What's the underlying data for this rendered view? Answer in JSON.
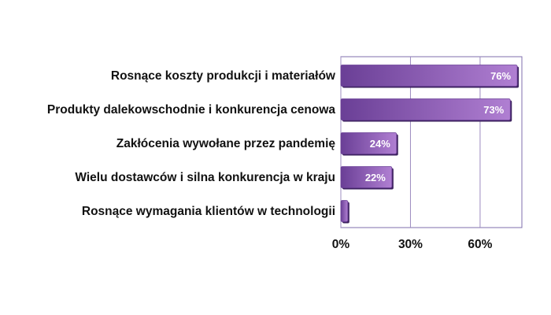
{
  "chart_data": {
    "type": "bar",
    "orientation": "horizontal",
    "categories": [
      "Rosnące koszty produkcji i materiałów",
      "Produkty dalekowschodnie i konkurencja cenowa",
      "Zakłócenia wywołane przez pandemię",
      "Wielu dostawców i silna konkurencja w kraju",
      "Rosnące wymagania klientów w technologii"
    ],
    "values": [
      76,
      73,
      24,
      22,
      3
    ],
    "value_labels": [
      "76%",
      "73%",
      "24%",
      "22%",
      ""
    ],
    "x_ticks": [
      {
        "value": 0,
        "label": "0%"
      },
      {
        "value": 30,
        "label": "30%"
      },
      {
        "value": 60,
        "label": "60%"
      }
    ],
    "xlim": [
      0,
      78
    ],
    "grid": "vertical",
    "legend": "none",
    "title": "",
    "xlabel": "",
    "ylabel": "",
    "colors": {
      "bar_dark": "#6a3f96",
      "bar_light": "#b07fd2",
      "bar_shadow": "#3e2360",
      "grid": "#9c8cc0",
      "frame": "#7f6fae"
    }
  }
}
